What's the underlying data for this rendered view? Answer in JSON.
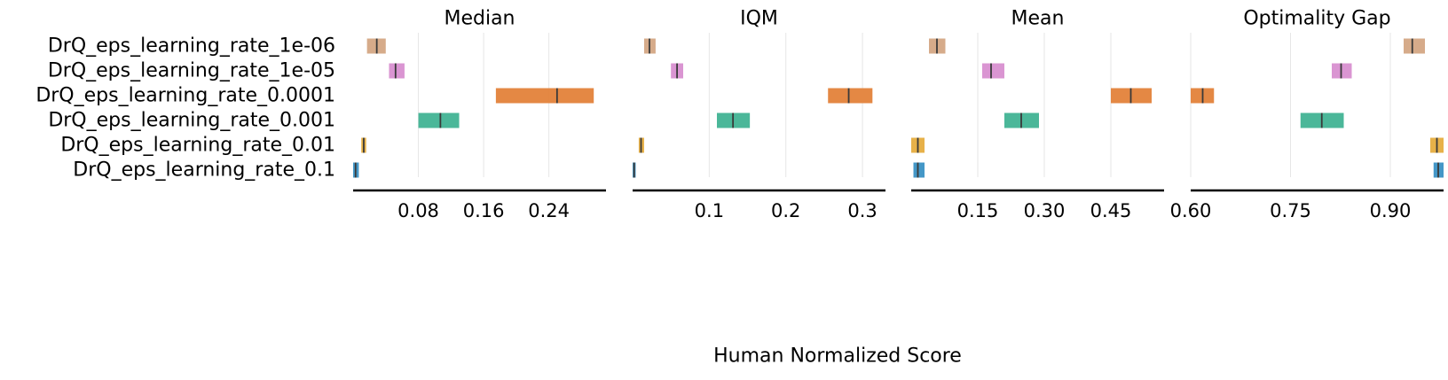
{
  "chart_data": {
    "type": "interval",
    "xlabel": "Human Normalized Score",
    "algorithms": [
      "DrQ_eps_learning_rate_1e-06",
      "DrQ_eps_learning_rate_1e-05",
      "DrQ_eps_learning_rate_0.0001",
      "DrQ_eps_learning_rate_0.001",
      "DrQ_eps_learning_rate_0.01",
      "DrQ_eps_learning_rate_0.1"
    ],
    "colors": [
      "#d4a784",
      "#d88fd0",
      "#e3823a",
      "#41b394",
      "#e6ad3f",
      "#3a91c4"
    ],
    "panels": [
      {
        "title": "Median",
        "xlim": [
          0.0,
          0.31
        ],
        "ticks": [
          0.08,
          0.16,
          0.24
        ],
        "tick_labels": [
          "0.08",
          "0.16",
          "0.24"
        ],
        "intervals": [
          {
            "low": 0.017,
            "mid": 0.029,
            "high": 0.04
          },
          {
            "low": 0.044,
            "mid": 0.052,
            "high": 0.063
          },
          {
            "low": 0.175,
            "mid": 0.25,
            "high": 0.295
          },
          {
            "low": 0.08,
            "mid": 0.107,
            "high": 0.13
          },
          {
            "low": 0.01,
            "mid": 0.013,
            "high": 0.016
          },
          {
            "low": 0.0,
            "mid": 0.003,
            "high": 0.007
          }
        ]
      },
      {
        "title": "IQM",
        "xlim": [
          0.0,
          0.33
        ],
        "ticks": [
          0.1,
          0.2,
          0.3
        ],
        "tick_labels": [
          "0.1",
          "0.2",
          "0.3"
        ],
        "intervals": [
          {
            "low": 0.015,
            "mid": 0.022,
            "high": 0.03
          },
          {
            "low": 0.05,
            "mid": 0.058,
            "high": 0.066
          },
          {
            "low": 0.255,
            "mid": 0.282,
            "high": 0.313
          },
          {
            "low": 0.11,
            "mid": 0.131,
            "high": 0.153
          },
          {
            "low": 0.008,
            "mid": 0.011,
            "high": 0.015
          },
          {
            "low": 0.0,
            "mid": 0.002,
            "high": 0.004
          }
        ]
      },
      {
        "title": "Mean",
        "xlim": [
          0.0,
          0.57
        ],
        "ticks": [
          0.15,
          0.3,
          0.45
        ],
        "tick_labels": [
          "0.15",
          "0.30",
          "0.45"
        ],
        "intervals": [
          {
            "low": 0.04,
            "mid": 0.058,
            "high": 0.077
          },
          {
            "low": 0.16,
            "mid": 0.18,
            "high": 0.21
          },
          {
            "low": 0.45,
            "mid": 0.495,
            "high": 0.542
          },
          {
            "low": 0.21,
            "mid": 0.248,
            "high": 0.288
          },
          {
            "low": 0.0,
            "mid": 0.015,
            "high": 0.03
          },
          {
            "low": 0.005,
            "mid": 0.015,
            "high": 0.03
          }
        ]
      },
      {
        "title": "Optimality Gap",
        "xlim": [
          0.6,
          0.98
        ],
        "ticks": [
          0.6,
          0.75,
          0.9
        ],
        "tick_labels": [
          "0.60",
          "0.75",
          "0.90"
        ],
        "intervals": [
          {
            "low": 0.92,
            "mid": 0.933,
            "high": 0.952
          },
          {
            "low": 0.812,
            "mid": 0.826,
            "high": 0.842
          },
          {
            "low": 0.6,
            "mid": 0.618,
            "high": 0.635
          },
          {
            "low": 0.765,
            "mid": 0.797,
            "high": 0.83
          },
          {
            "low": 0.96,
            "mid": 0.97,
            "high": 0.98
          },
          {
            "low": 0.965,
            "mid": 0.972,
            "high": 0.98
          }
        ]
      }
    ]
  }
}
